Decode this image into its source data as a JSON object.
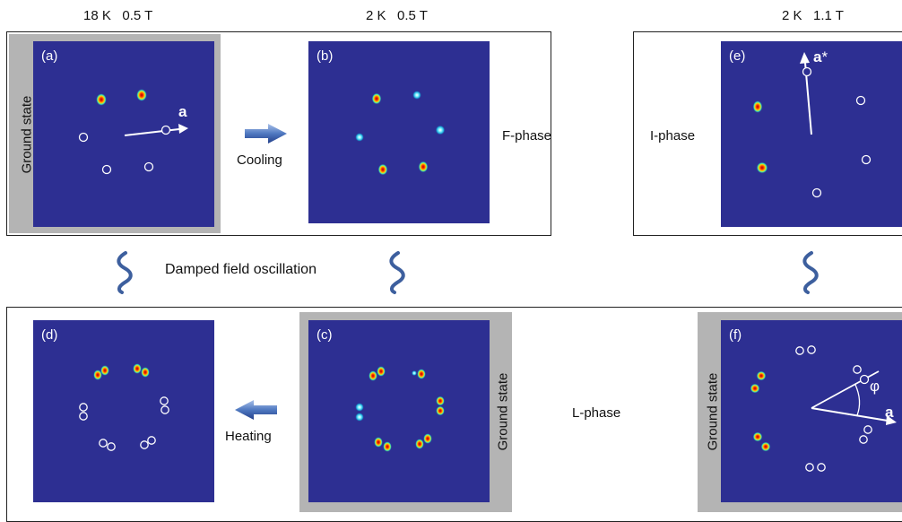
{
  "headers": {
    "left": "18 K   0.5 T",
    "middle": "2 K   0.5 T",
    "right": "2 K   1.1 T"
  },
  "panels": {
    "a": "(a)",
    "b": "(b)",
    "c": "(c)",
    "d": "(d)",
    "e": "(e)",
    "f": "(f)"
  },
  "ground_state": "Ground state",
  "phases": {
    "f_phase": "F-phase",
    "i_phase": "I-phase",
    "l_phase": "L-phase"
  },
  "process": {
    "cooling": "Cooling",
    "heating": "Heating",
    "damped": "Damped field oscillation"
  },
  "vectors": {
    "a": "a",
    "a_star": "a",
    "star": "*",
    "phi": "φ"
  },
  "colors": {
    "panel_bg": "#2d2f92",
    "frame_gray": "#b4b4b4",
    "arrow_blue": "#4a6fb5",
    "wave_blue": "#3d5f9e"
  },
  "icons": [
    "cooling-arrow-icon",
    "heating-arrow-icon",
    "wavy-line-icon"
  ]
}
